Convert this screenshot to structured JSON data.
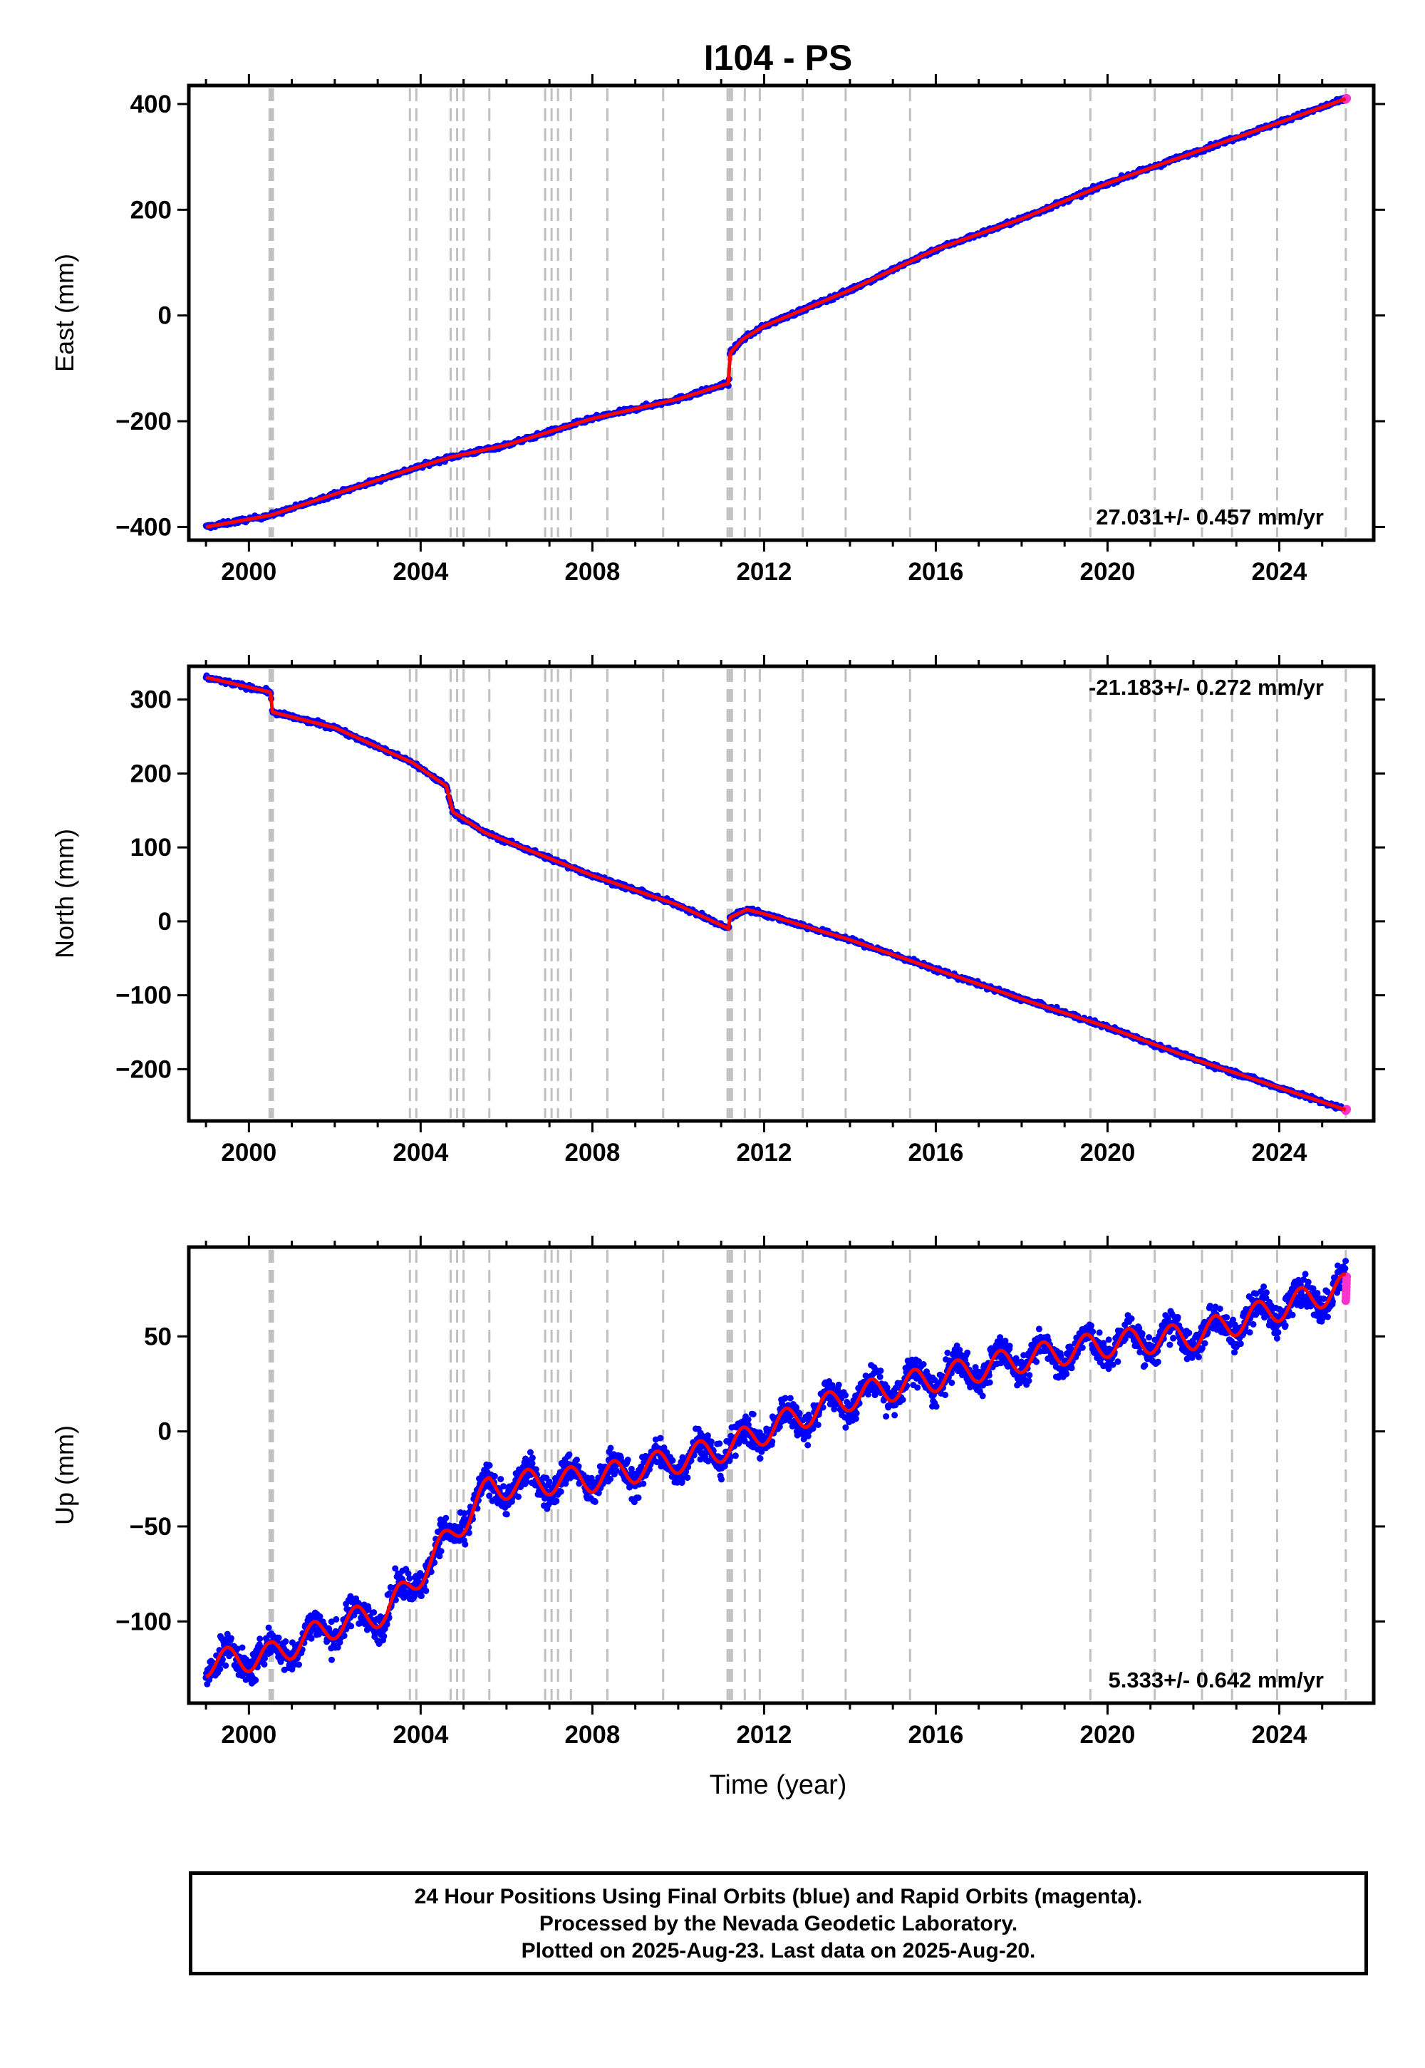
{
  "title": "I104 - PS",
  "xlabel": "Time (year)",
  "colors": {
    "final": "#0000ff",
    "rapid": "#ff33cc",
    "model": "#ff0000",
    "steps": "#c0c0c0"
  },
  "caption": [
    "24 Hour Positions Using Final Orbits (blue) and Rapid Orbits (magenta).",
    "Processed by the Nevada Geodetic Laboratory.",
    "Plotted on 2025-Aug-23. Last data on 2025-Aug-20."
  ],
  "chart_data": [
    {
      "type": "scatter",
      "ylabel": "East (mm)",
      "xlim": [
        1998.6,
        2026.2
      ],
      "ylim": [
        -425,
        435
      ],
      "xticks": [
        2000,
        2004,
        2008,
        2012,
        2016,
        2020,
        2024
      ],
      "yticks": [
        -400,
        -200,
        0,
        200,
        400
      ],
      "rate": "27.031+/- 0.457 mm/yr",
      "rate_position": "bottom-right",
      "series": [
        {
          "x": [
            1999.0,
            2000.5,
            2003.8,
            2004.7,
            2006.0,
            2008.0,
            2010.0,
            2011.18,
            2011.2,
            2011.5,
            2012.0,
            2014.0,
            2016.0,
            2018.0,
            2020.0,
            2022.0,
            2024.0,
            2025.55
          ],
          "y": [
            -400,
            -378,
            -290,
            -268,
            -245,
            -195,
            -158,
            -128,
            -72,
            -45,
            -20,
            48,
            125,
            183,
            250,
            308,
            365,
            410
          ],
          "noise": 4
        }
      ]
    },
    {
      "type": "scatter",
      "ylabel": "North (mm)",
      "xlim": [
        1998.6,
        2026.2
      ],
      "ylim": [
        -270,
        345
      ],
      "xticks": [
        2000,
        2004,
        2008,
        2012,
        2016,
        2020,
        2024
      ],
      "yticks": [
        -200,
        -100,
        0,
        100,
        200,
        300
      ],
      "rate": "-21.183+/- 0.272 mm/yr",
      "rate_position": "top-right",
      "series": [
        {
          "x": [
            1999.0,
            2000.5,
            2000.55,
            2002.0,
            2003.8,
            2004.6,
            2004.75,
            2005.5,
            2008.0,
            2010.0,
            2011.18,
            2011.2,
            2011.6,
            2012.0,
            2014.0,
            2016.0,
            2018.0,
            2020.0,
            2022.0,
            2024.0,
            2025.55
          ],
          "y": [
            330,
            310,
            283,
            262,
            215,
            183,
            148,
            120,
            62,
            22,
            -10,
            5,
            16,
            10,
            -25,
            -65,
            -105,
            -143,
            -186,
            -225,
            -255
          ],
          "noise": 3
        }
      ]
    },
    {
      "type": "scatter",
      "ylabel": "Up (mm)",
      "xlim": [
        1998.6,
        2026.2
      ],
      "ylim": [
        -143,
        97
      ],
      "xticks": [
        2000,
        2004,
        2008,
        2012,
        2016,
        2020,
        2024
      ],
      "yticks": [
        -100,
        -50,
        0,
        50
      ],
      "rate": "5.333+/- 0.642 mm/yr",
      "rate_position": "bottom-right",
      "series": [
        {
          "x": [
            1999.0,
            2000.5,
            2002.0,
            2003.2,
            2003.8,
            2004.7,
            2005.6,
            2006.5,
            2008.0,
            2010.0,
            2011.2,
            2012.5,
            2014.0,
            2016.0,
            2018.0,
            2020.0,
            2022.0,
            2024.0,
            2025.55
          ],
          "y": [
            -122,
            -118,
            -102,
            -95,
            -80,
            -55,
            -30,
            -27,
            -25,
            -15,
            -8,
            5,
            18,
            28,
            38,
            46,
            50,
            65,
            76
          ],
          "noise": 8,
          "seasonal": 7
        }
      ]
    }
  ]
}
